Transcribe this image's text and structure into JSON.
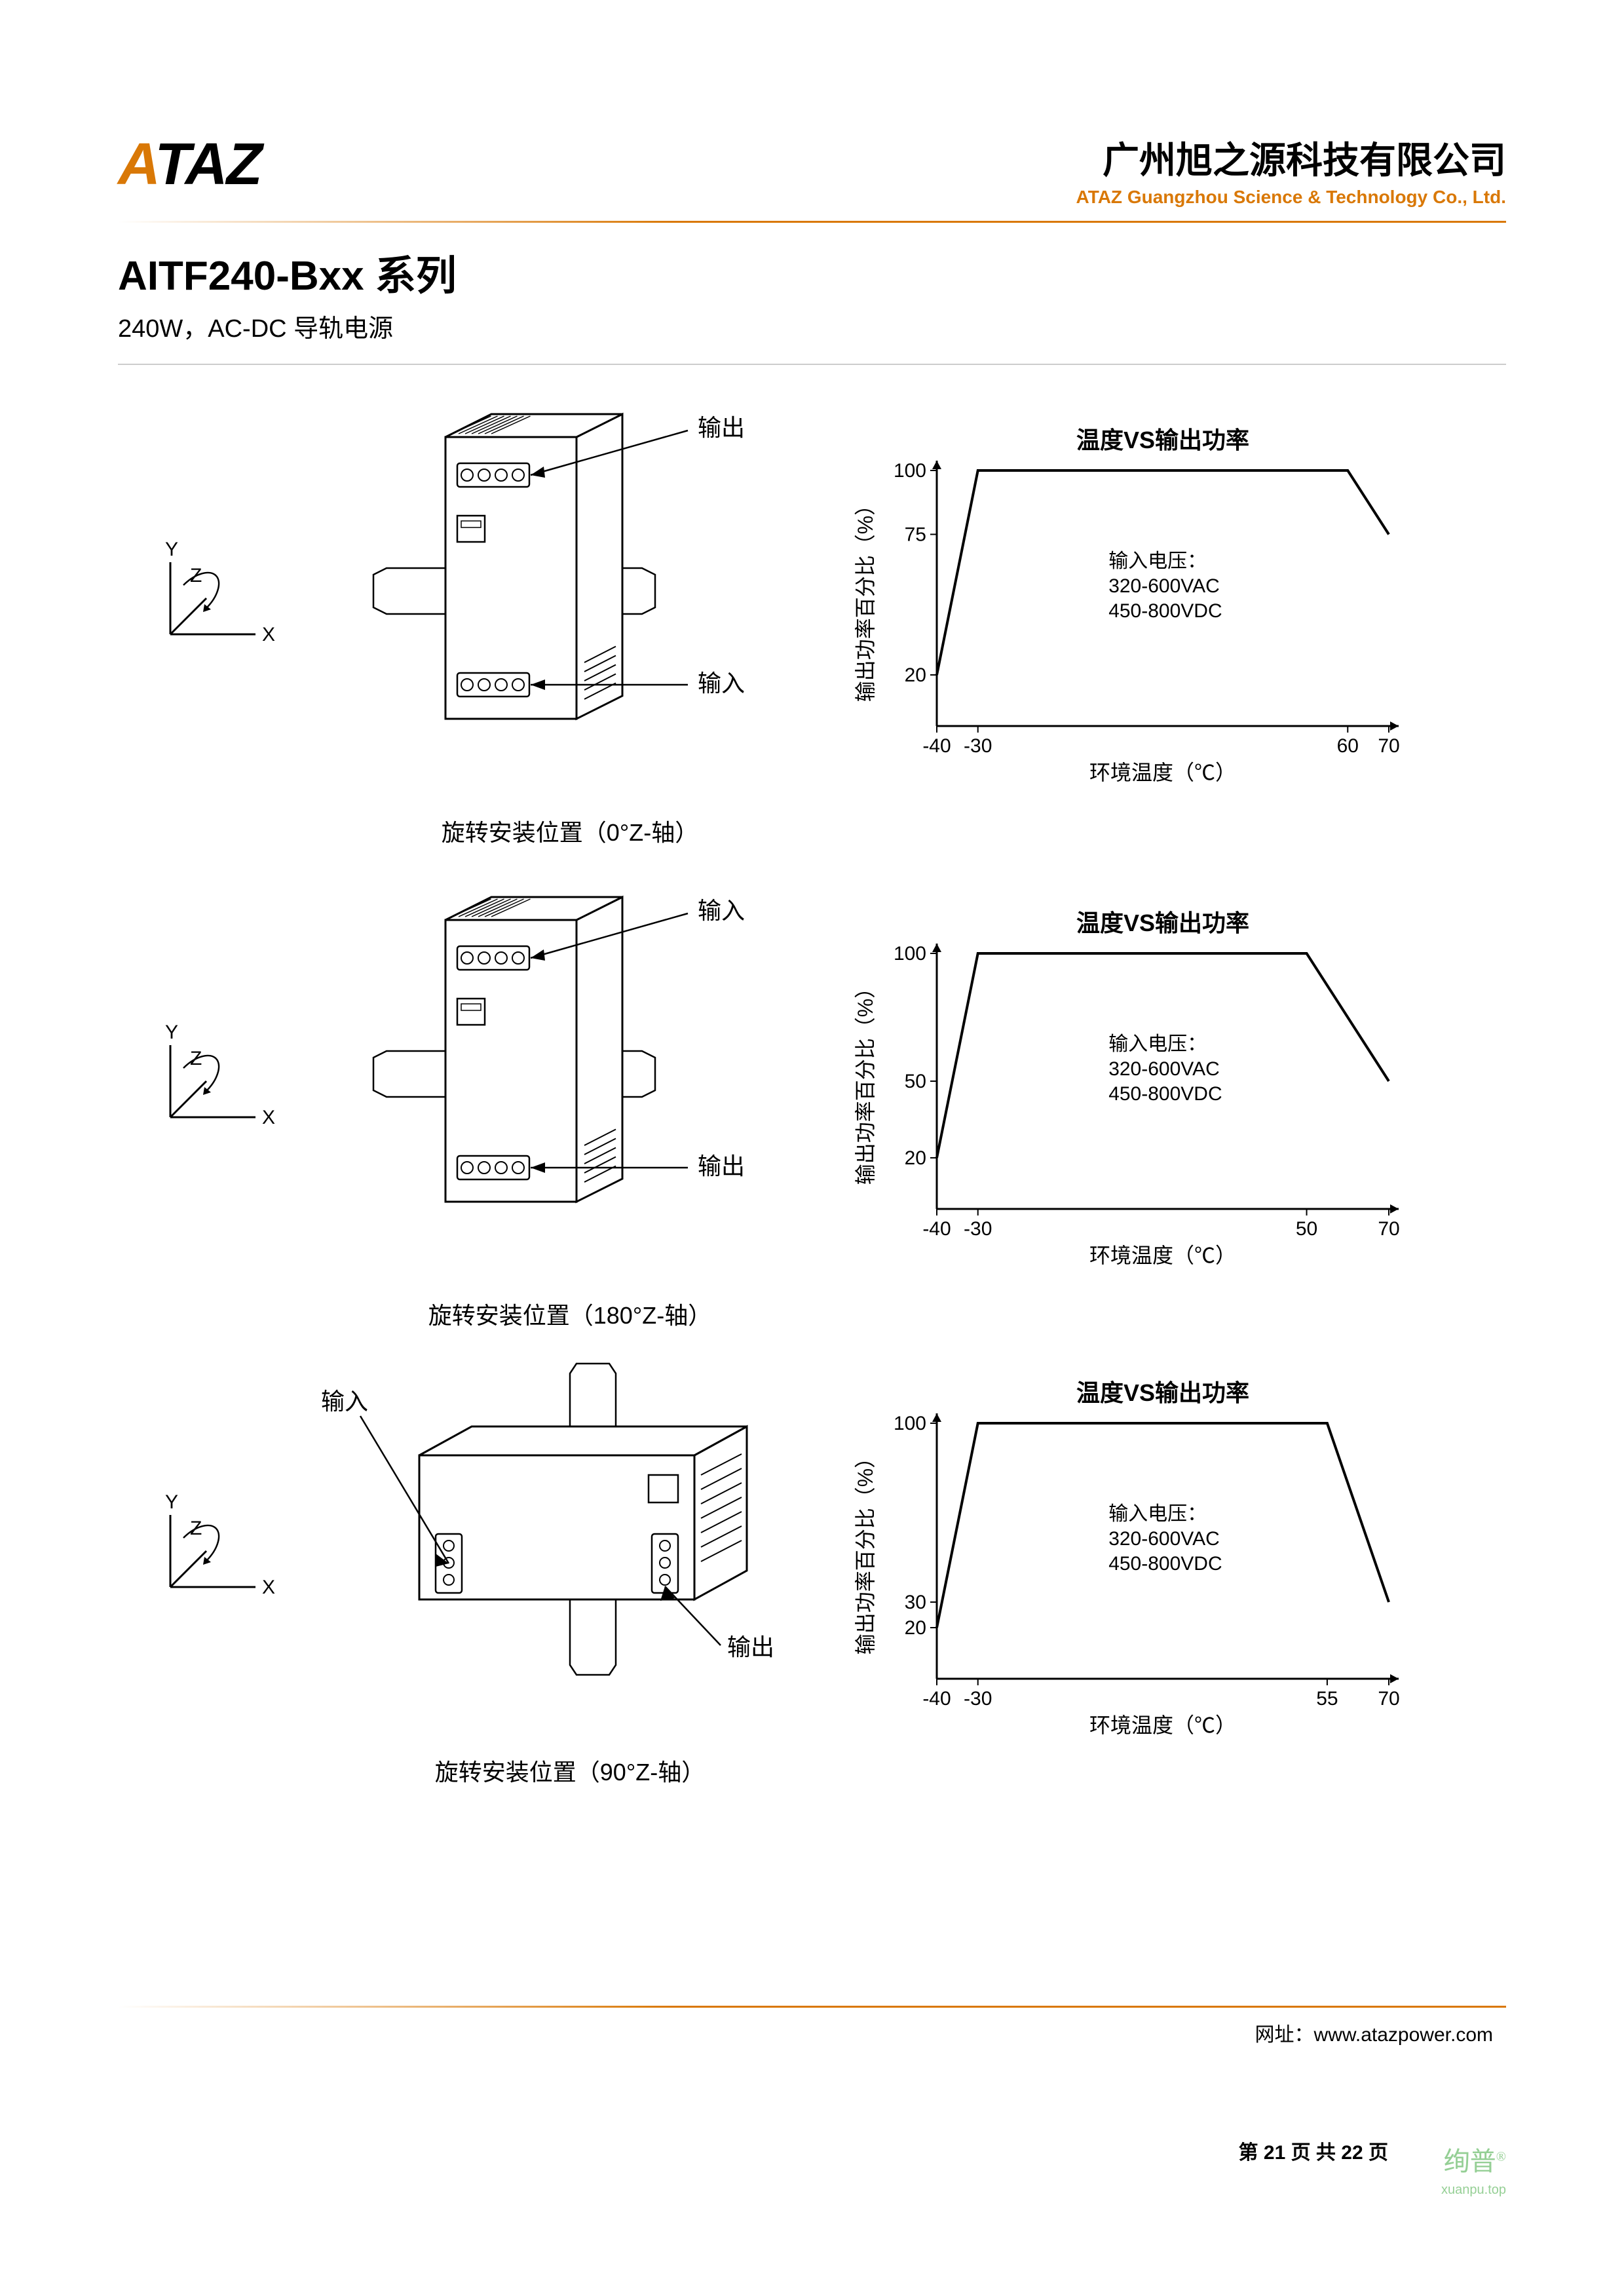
{
  "header": {
    "logo_text": "ATAZ",
    "company_cn": "广州旭之源科技有限公司",
    "company_en": "ATAZ Guangzhou Science & Technology Co., Ltd."
  },
  "title": {
    "product": "AITF240-Bxx 系列",
    "subtitle": "240W，AC-DC 导轨电源"
  },
  "rows": [
    {
      "axis": {
        "labels": {
          "x": "X",
          "y": "Y",
          "z": "Z"
        },
        "rotation": 0
      },
      "device": {
        "top_label": "输出",
        "bottom_label": "输入",
        "caption": "旋转安装位置（0°Z-轴）",
        "orientation": "vertical"
      },
      "chart": {
        "type": "line",
        "title": "温度VS输出功率",
        "xlabel": "环境温度（℃）",
        "ylabel": "输出功率百分比（%）",
        "xlim": [
          -40,
          70
        ],
        "ylim": [
          0,
          100
        ],
        "xticks": [
          -40,
          -30,
          60,
          70
        ],
        "yticks": [
          20,
          75,
          100
        ],
        "points": [
          [
            -40,
            20
          ],
          [
            -30,
            100
          ],
          [
            60,
            100
          ],
          [
            70,
            75
          ]
        ],
        "box_text": [
          "输入电压：",
          "320-600VAC",
          "450-800VDC"
        ],
        "line_color": "#000000",
        "line_width": 3,
        "axis_color": "#000000",
        "bg": "#ffffff",
        "label_fontsize": 32,
        "tick_fontsize": 30,
        "title_fontsize": 36
      }
    },
    {
      "axis": {
        "labels": {
          "x": "X",
          "y": "Y",
          "z": "Z"
        },
        "rotation": 180
      },
      "device": {
        "top_label": "输入",
        "bottom_label": "输出",
        "caption": "旋转安装位置（180°Z-轴）",
        "orientation": "vertical"
      },
      "chart": {
        "type": "line",
        "title": "温度VS输出功率",
        "xlabel": "环境温度（℃）",
        "ylabel": "输出功率百分比（%）",
        "xlim": [
          -40,
          70
        ],
        "ylim": [
          0,
          100
        ],
        "xticks": [
          -40,
          -30,
          50,
          70
        ],
        "yticks": [
          20,
          50,
          100
        ],
        "points": [
          [
            -40,
            20
          ],
          [
            -30,
            100
          ],
          [
            50,
            100
          ],
          [
            70,
            50
          ]
        ],
        "box_text": [
          "输入电压：",
          "320-600VAC",
          "450-800VDC"
        ],
        "line_color": "#000000",
        "line_width": 3,
        "axis_color": "#000000",
        "bg": "#ffffff",
        "label_fontsize": 32,
        "tick_fontsize": 30,
        "title_fontsize": 36
      }
    },
    {
      "axis": {
        "labels": {
          "x": "X",
          "y": "Y",
          "z": "Z"
        },
        "rotation": 90
      },
      "device": {
        "top_label": "输入",
        "bottom_label": "输出",
        "caption": "旋转安装位置（90°Z-轴）",
        "orientation": "horizontal"
      },
      "chart": {
        "type": "line",
        "title": "温度VS输出功率",
        "xlabel": "环境温度（℃）",
        "ylabel": "输出功率百分比（%）",
        "xlim": [
          -40,
          70
        ],
        "ylim": [
          0,
          100
        ],
        "xticks": [
          -40,
          -30,
          55,
          70
        ],
        "yticks": [
          20,
          30,
          100
        ],
        "points": [
          [
            -40,
            20
          ],
          [
            -30,
            100
          ],
          [
            55,
            100
          ],
          [
            70,
            30
          ]
        ],
        "box_text": [
          "输入电压：",
          "320-600VAC",
          "450-800VDC"
        ],
        "line_color": "#000000",
        "line_width": 3,
        "axis_color": "#000000",
        "bg": "#ffffff",
        "label_fontsize": 32,
        "tick_fontsize": 30,
        "title_fontsize": 36
      }
    }
  ],
  "footer": {
    "url_label": "网址：",
    "url": "www.atazpower.com",
    "page_prefix": "第 ",
    "page_current": "21",
    "page_mid": " 页 共 ",
    "page_total": "22",
    "page_suffix": " 页",
    "watermark": "绚普",
    "watermark_sub": "xuanpu.top"
  },
  "colors": {
    "accent": "#d97806",
    "text": "#000000",
    "rule_gray": "#cccccc"
  }
}
